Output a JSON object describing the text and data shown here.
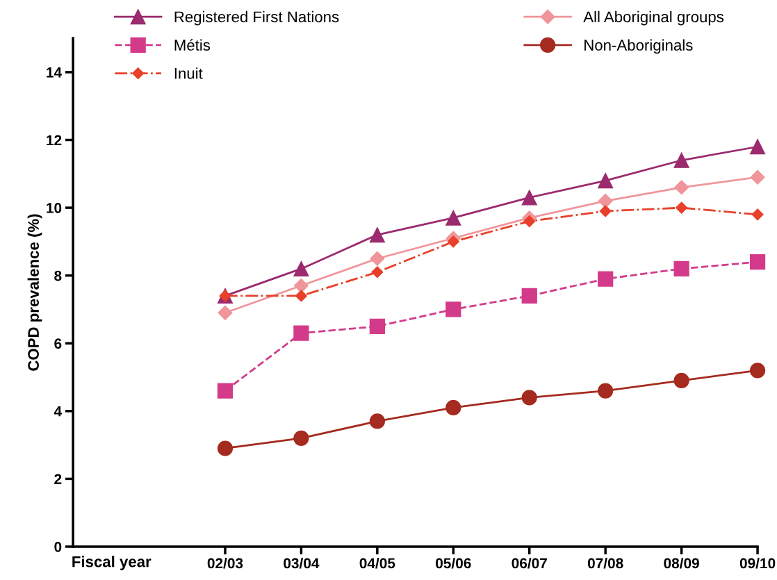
{
  "chart_data": {
    "type": "line",
    "xlabel": "Fiscal year",
    "ylabel": "COPD prevalence (%)",
    "categories": [
      null,
      null,
      "02/03",
      "03/04",
      "04/05",
      "05/06",
      "06/07",
      "07/08",
      "08/09",
      "09/10"
    ],
    "series": [
      {
        "name": "Registered First Nations",
        "color": "#9b2a6e",
        "marker": "triangle",
        "line_style": "solid",
        "values": [
          null,
          null,
          7.4,
          8.2,
          9.2,
          9.7,
          10.3,
          10.8,
          11.4,
          11.8
        ]
      },
      {
        "name": "Métis",
        "color": "#d33a8a",
        "marker": "square",
        "line_style": "dashed",
        "values": [
          null,
          null,
          4.6,
          6.3,
          6.5,
          7.0,
          7.4,
          7.9,
          8.2,
          8.4
        ]
      },
      {
        "name": "Inuit",
        "color": "#e8402a",
        "marker": "diamond",
        "line_style": "dashdot",
        "values": [
          null,
          null,
          7.4,
          7.4,
          8.1,
          9.0,
          9.6,
          9.9,
          10.0,
          9.8
        ]
      },
      {
        "name": "All Aboriginal groups",
        "color": "#f0959a",
        "marker": "diamond",
        "line_style": "solid",
        "values": [
          null,
          null,
          6.9,
          7.7,
          8.5,
          9.1,
          9.7,
          10.2,
          10.6,
          10.9
        ]
      },
      {
        "name": "Non-Aboriginals",
        "color": "#a52a1f",
        "marker": "circle",
        "line_style": "solid",
        "values": [
          null,
          null,
          2.9,
          3.2,
          3.7,
          4.1,
          4.4,
          4.6,
          4.9,
          5.2
        ]
      }
    ],
    "ylim": [
      0,
      15
    ],
    "yticks": [
      0,
      2,
      4,
      6,
      8,
      10,
      12,
      14
    ],
    "grid": false,
    "legend": "top left"
  }
}
